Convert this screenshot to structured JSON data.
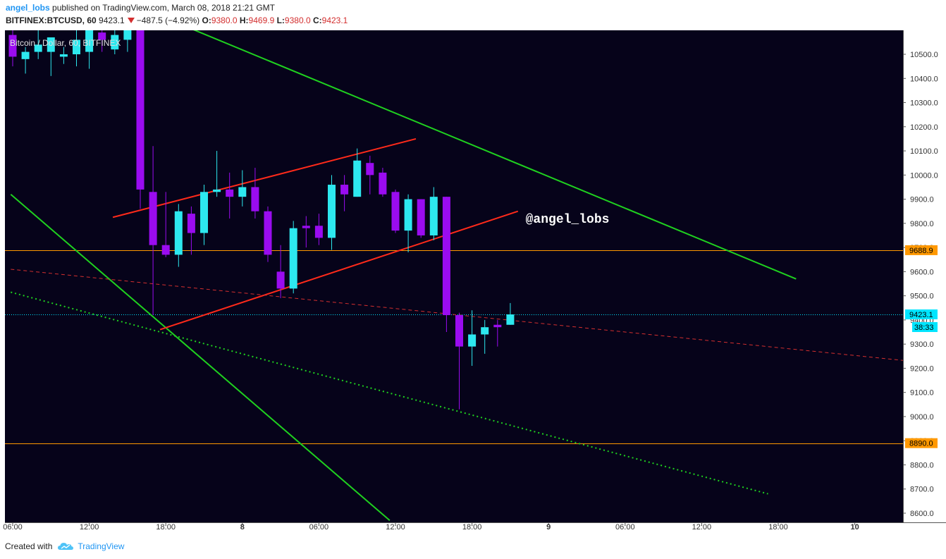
{
  "header": {
    "author": "angel_lobs",
    "published_text": "published on TradingView.com, March 08, 2018 21:21 GMT",
    "symbol_label": "BITFINEX:BTCUSD, 60",
    "last_price": "9423.1",
    "change": "−487.5 (−4.92%)",
    "o_label": "O:",
    "o_value": "9380.0",
    "h_label": "H:",
    "h_value": "9469.9",
    "l_label": "L:",
    "l_value": "9380.0",
    "c_label": "C:",
    "c_value": "9423.1"
  },
  "footer": {
    "created_with": "Created with",
    "brand": "TradingView",
    "logo_icon": "tradingview-cloud-icon"
  },
  "chart_data": {
    "type": "candlestick",
    "title": "Bitcoin / Dollar, 60, BITFINEX",
    "ylim": [
      8570,
      10600
    ],
    "y_ticks": [
      8600,
      8700,
      8800,
      8900,
      9000,
      9100,
      9200,
      9300,
      9400,
      9500,
      9600,
      9700,
      9800,
      9900,
      10000,
      10100,
      10200,
      10300,
      10400,
      10500
    ],
    "y_tick_format": "one-decimal",
    "x_ticks": [
      {
        "idx": 0,
        "label": "06:00"
      },
      {
        "idx": 6,
        "label": "12:00"
      },
      {
        "idx": 12,
        "label": "18:00"
      },
      {
        "idx": 18,
        "label": "8"
      },
      {
        "idx": 24,
        "label": "06:00"
      },
      {
        "idx": 30,
        "label": "12:00"
      },
      {
        "idx": 36,
        "label": "18:00"
      },
      {
        "idx": 42,
        "label": "9"
      },
      {
        "idx": 48,
        "label": "06:00"
      },
      {
        "idx": 54,
        "label": "12:00"
      },
      {
        "idx": 60,
        "label": "18:00"
      },
      {
        "idx": 66,
        "label": "10"
      }
    ],
    "candles": [
      {
        "o": 10580,
        "h": 10620,
        "c": 10490,
        "l": 10450
      },
      {
        "o": 10480,
        "h": 10530,
        "c": 10510,
        "l": 10420
      },
      {
        "o": 10510,
        "h": 10600,
        "c": 10540,
        "l": 10480
      },
      {
        "o": 10510,
        "h": 10560,
        "c": 10570,
        "l": 10410
      },
      {
        "o": 10490,
        "h": 10530,
        "c": 10500,
        "l": 10460
      },
      {
        "o": 10500,
        "h": 10600,
        "c": 10560,
        "l": 10450
      },
      {
        "o": 10510,
        "h": 10620,
        "c": 10600,
        "l": 10440
      },
      {
        "o": 10590,
        "h": 10630,
        "c": 10560,
        "l": 10510
      },
      {
        "o": 10520,
        "h": 10600,
        "c": 10580,
        "l": 10500
      },
      {
        "o": 10560,
        "h": 10620,
        "c": 10600,
        "l": 10510
      },
      {
        "o": 10620,
        "h": 10650,
        "c": 9940,
        "l": 9860
      },
      {
        "o": 9930,
        "h": 10120,
        "c": 9710,
        "l": 9420
      },
      {
        "o": 9710,
        "h": 9930,
        "c": 9670,
        "l": 9660
      },
      {
        "o": 9670,
        "h": 9880,
        "c": 9850,
        "l": 9620
      },
      {
        "o": 9840,
        "h": 9870,
        "c": 9760,
        "l": 9670
      },
      {
        "o": 9760,
        "h": 9960,
        "c": 9930,
        "l": 9710
      },
      {
        "o": 9930,
        "h": 10100,
        "c": 9940,
        "l": 9910
      },
      {
        "o": 9940,
        "h": 10010,
        "c": 9910,
        "l": 9820
      },
      {
        "o": 9910,
        "h": 10020,
        "c": 9950,
        "l": 9870
      },
      {
        "o": 9950,
        "h": 10030,
        "c": 9850,
        "l": 9820
      },
      {
        "o": 9850,
        "h": 9870,
        "c": 9670,
        "l": 9640
      },
      {
        "o": 9600,
        "h": 9710,
        "c": 9530,
        "l": 9490
      },
      {
        "o": 9530,
        "h": 9810,
        "c": 9780,
        "l": 9510
      },
      {
        "o": 9790,
        "h": 9830,
        "c": 9780,
        "l": 9700
      },
      {
        "o": 9790,
        "h": 9840,
        "c": 9740,
        "l": 9710
      },
      {
        "o": 9740,
        "h": 10000,
        "c": 9960,
        "l": 9690
      },
      {
        "o": 9960,
        "h": 10000,
        "c": 9920,
        "l": 9850
      },
      {
        "o": 9910,
        "h": 10110,
        "c": 10060,
        "l": 9910
      },
      {
        "o": 10050,
        "h": 10080,
        "c": 10000,
        "l": 9920
      },
      {
        "o": 10010,
        "h": 10030,
        "c": 9920,
        "l": 9910
      },
      {
        "o": 9930,
        "h": 9940,
        "c": 9770,
        "l": 9760
      },
      {
        "o": 9770,
        "h": 9920,
        "c": 9900,
        "l": 9680
      },
      {
        "o": 9900,
        "h": 9900,
        "c": 9750,
        "l": 9740
      },
      {
        "o": 9750,
        "h": 9950,
        "c": 9910,
        "l": 9730
      },
      {
        "o": 9910,
        "h": 9910,
        "c": 9420,
        "l": 9350
      },
      {
        "o": 9420,
        "h": 9430,
        "c": 9290,
        "l": 9030
      },
      {
        "o": 9290,
        "h": 9440,
        "c": 9340,
        "l": 9210
      },
      {
        "o": 9340,
        "h": 9400,
        "c": 9370,
        "l": 9260
      },
      {
        "o": 9380,
        "h": 9400,
        "c": 9370,
        "l": 9290
      },
      {
        "o": 9380,
        "h": 9470,
        "c": 9423,
        "l": 9380
      }
    ],
    "trendlines": [
      {
        "kind": "green-solid",
        "color": "#1fd11f",
        "p1": {
          "idx": 13.8,
          "y": 10610
        },
        "p2": {
          "idx": 61.4,
          "y": 9570
        }
      },
      {
        "kind": "green-solid",
        "color": "#1fd11f",
        "p1": {
          "idx": -0.15,
          "y": 9920
        },
        "p2": {
          "idx": 29.55,
          "y": 8570
        }
      },
      {
        "kind": "red-solid",
        "color": "#ff2a1a",
        "p1": {
          "idx": 7.85,
          "y": 9825
        },
        "p2": {
          "idx": 31.6,
          "y": 10150
        }
      },
      {
        "kind": "red-solid",
        "color": "#ff2a1a",
        "p1": {
          "idx": 11.55,
          "y": 9360
        },
        "p2": {
          "idx": 39.6,
          "y": 9850
        }
      },
      {
        "kind": "red-dashed",
        "color": "#d32f2f",
        "p1": {
          "idx": -0.15,
          "y": 9610
        },
        "p2": {
          "idx": 70.25,
          "y": 9230
        }
      },
      {
        "kind": "green-dotted",
        "color": "#1fd11f",
        "p1": {
          "idx": -0.15,
          "y": 9515
        },
        "p2": {
          "idx": 59.2,
          "y": 8680
        }
      }
    ],
    "horizontal_levels": [
      {
        "value": 9688.9,
        "label": "9688.9",
        "color": "#ff9800"
      },
      {
        "value": 8890.0,
        "label": "8890.0",
        "color": "#ff9800"
      }
    ],
    "last_price": {
      "value": 9423.1,
      "label": "9423.1",
      "countdown": "38:33",
      "color": "#00e5ff"
    },
    "annotations": [
      {
        "text": "@angel_lobs",
        "idx": 40.2,
        "y": 9820
      }
    ],
    "grid": false,
    "background": "#06031a",
    "up_color": "#2de8ef",
    "down_color": "#9a0cf0"
  }
}
